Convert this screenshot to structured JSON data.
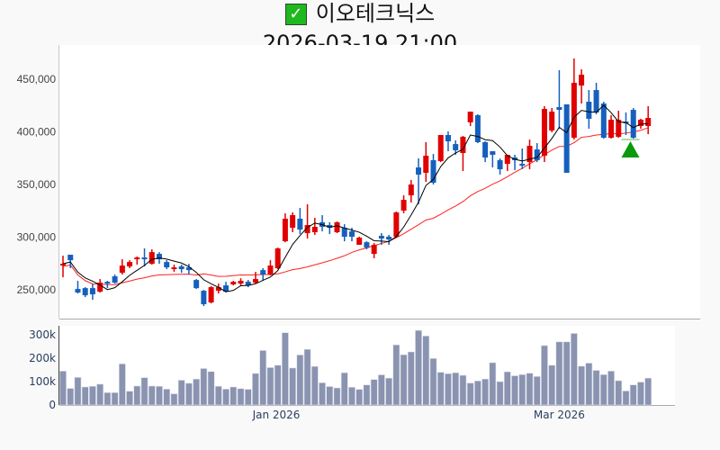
{
  "header": {
    "check_icon": "white-check-mark-green-box",
    "stock_name": "이오테크닉스",
    "datetime": "2026-03-19 21:00"
  },
  "colors": {
    "up": "#e00000",
    "down": "#1560bd",
    "ma_short": "#000000",
    "ma_long": "#ff2020",
    "volume": "#8a93b0",
    "signal": "#0a9a0a"
  },
  "chart_data": [
    {
      "type": "candlestick",
      "title": "이오테크닉스",
      "ylim": [
        215000,
        480000
      ],
      "yticks": [
        {
          "value": 250000,
          "label": "250,000"
        },
        {
          "value": 300000,
          "label": "300,000"
        },
        {
          "value": 350000,
          "label": "350,000"
        },
        {
          "value": 400000,
          "label": "400,000"
        },
        {
          "value": 450000,
          "label": "450,000"
        }
      ],
      "xticks": [
        {
          "index": 28.8,
          "label": "Jan 2026"
        },
        {
          "index": 67,
          "label": "Mar 2026"
        }
      ],
      "ohlc": [
        [
          273000,
          282400,
          261900,
          274700
        ],
        [
          283300,
          283300,
          270500,
          278100
        ],
        [
          250800,
          258500,
          246500,
          247400
        ],
        [
          251600,
          252500,
          243100,
          244800
        ],
        [
          251600,
          255900,
          240500,
          245700
        ],
        [
          248200,
          260200,
          247400,
          256800
        ],
        [
          257600,
          258500,
          251600,
          255900
        ],
        [
          262800,
          264500,
          255900,
          256800
        ],
        [
          266200,
          279000,
          264500,
          273000
        ],
        [
          272200,
          278100,
          270500,
          276400
        ],
        [
          279000,
          281600,
          273900,
          280700
        ],
        [
          280700,
          289300,
          272200,
          279000
        ],
        [
          274700,
          288400,
          273900,
          285800
        ],
        [
          284100,
          285800,
          274700,
          279000
        ],
        [
          276400,
          278100,
          269600,
          271300
        ],
        [
          269600,
          273900,
          267000,
          271300
        ],
        [
          272200,
          273900,
          266200,
          269600
        ],
        [
          271300,
          274700,
          264500,
          268700
        ],
        [
          259300,
          260200,
          250800,
          251600
        ],
        [
          249100,
          249900,
          234500,
          236300
        ],
        [
          238000,
          253400,
          237100,
          252500
        ],
        [
          249100,
          255900,
          246500,
          252500
        ],
        [
          254200,
          257600,
          247400,
          248200
        ],
        [
          255100,
          258500,
          254200,
          257600
        ],
        [
          255900,
          261000,
          254200,
          258500
        ],
        [
          257600,
          259300,
          252500,
          254200
        ],
        [
          256800,
          267000,
          255900,
          260200
        ],
        [
          268700,
          270500,
          258500,
          264500
        ],
        [
          264500,
          278100,
          263600,
          273000
        ],
        [
          270500,
          290100,
          269600,
          289300
        ],
        [
          296100,
          322600,
          295200,
          317500
        ],
        [
          308900,
          323500,
          304700,
          320900
        ],
        [
          317500,
          327700,
          302900,
          307200
        ],
        [
          303800,
          331200,
          298700,
          311500
        ],
        [
          304700,
          318300,
          302100,
          309800
        ],
        [
          314100,
          320900,
          305500,
          309800
        ],
        [
          311500,
          314100,
          302900,
          308900
        ],
        [
          304700,
          314900,
          303800,
          314100
        ],
        [
          308900,
          312300,
          296100,
          300400
        ],
        [
          305500,
          308900,
          296100,
          300400
        ],
        [
          292700,
          300400,
          292700,
          299500
        ],
        [
          295200,
          296100,
          288400,
          290100
        ],
        [
          284100,
          294400,
          279900,
          292700
        ],
        [
          301200,
          303800,
          292700,
          298700
        ],
        [
          300400,
          302100,
          292700,
          297800
        ],
        [
          300400,
          324300,
          299500,
          323500
        ],
        [
          325200,
          339700,
          322600,
          335400
        ],
        [
          339700,
          354200,
          332900,
          350000
        ],
        [
          366200,
          374800,
          331200,
          359400
        ],
        [
          361100,
          390200,
          352500,
          377300
        ],
        [
          373100,
          379000,
          350000,
          351700
        ],
        [
          372200,
          397000,
          371300,
          397000
        ],
        [
          397000,
          400400,
          381600,
          391000
        ],
        [
          388400,
          391900,
          378200,
          382500
        ],
        [
          379900,
          396100,
          362800,
          395300
        ],
        [
          409000,
          419200,
          405500,
          419200
        ],
        [
          415800,
          416700,
          389300,
          390200
        ],
        [
          390200,
          391000,
          371300,
          375600
        ],
        [
          381600,
          381600,
          366200,
          378200
        ],
        [
          373100,
          374800,
          359400,
          364500
        ],
        [
          369600,
          378200,
          362800,
          378200
        ],
        [
          375600,
          378200,
          363600,
          373100
        ],
        [
          369600,
          384200,
          364500,
          367900
        ],
        [
          371300,
          392700,
          364500,
          386700
        ],
        [
          383300,
          389300,
          371300,
          373100
        ],
        [
          377300,
          424400,
          371300,
          421800
        ],
        [
          401300,
          422600,
          399600,
          419200
        ],
        [
          423500,
          458600,
          403000,
          420900
        ],
        [
          426100,
          426100,
          361100,
          361100
        ],
        [
          394400,
          469700,
          392700,
          446600
        ],
        [
          444000,
          459400,
          426900,
          454300
        ],
        [
          428600,
          439700,
          403000,
          412400
        ],
        [
          439700,
          446600,
          416700,
          418400
        ],
        [
          426900,
          428600,
          393600,
          394400
        ],
        [
          394400,
          415800,
          393600,
          411500
        ],
        [
          395300,
          420100,
          394400,
          411500
        ],
        [
          409800,
          418400,
          397000,
          408100
        ],
        [
          420900,
          422600,
          393600,
          394400
        ],
        [
          405500,
          412400,
          403000,
          411500
        ],
        [
          405500,
          424400,
          397800,
          413200
        ]
      ],
      "ma_periods": {
        "short": 5,
        "long": 20
      },
      "signal": {
        "type": "buy-triangle",
        "index": 76,
        "price": 384200
      }
    },
    {
      "type": "bar",
      "title": "volume",
      "ylim": [
        0,
        330000
      ],
      "yticks": [
        {
          "value": 0,
          "label": "0"
        },
        {
          "value": 100000,
          "label": "100k"
        },
        {
          "value": 200000,
          "label": "200k"
        },
        {
          "value": 300000,
          "label": "300k"
        }
      ],
      "values": [
        145000,
        71000,
        118000,
        77000,
        80000,
        89000,
        53000,
        53000,
        176000,
        59000,
        81000,
        117000,
        81000,
        80000,
        68000,
        48000,
        106000,
        93000,
        111000,
        156000,
        143000,
        80000,
        68000,
        77000,
        70000,
        67000,
        135000,
        233000,
        160000,
        170000,
        309000,
        158000,
        214000,
        238000,
        165000,
        95000,
        79000,
        73000,
        138000,
        76000,
        67000,
        86000,
        109000,
        129000,
        115000,
        257000,
        215000,
        227000,
        319000,
        295000,
        199000,
        140000,
        134000,
        138000,
        127000,
        94000,
        103000,
        111000,
        181000,
        100000,
        142000,
        125000,
        130000,
        136000,
        122000,
        254000,
        170000,
        270000,
        270000,
        306000,
        166000,
        179000,
        148000,
        130000,
        145000,
        104000,
        60000,
        86000,
        98000,
        115000
      ]
    }
  ]
}
